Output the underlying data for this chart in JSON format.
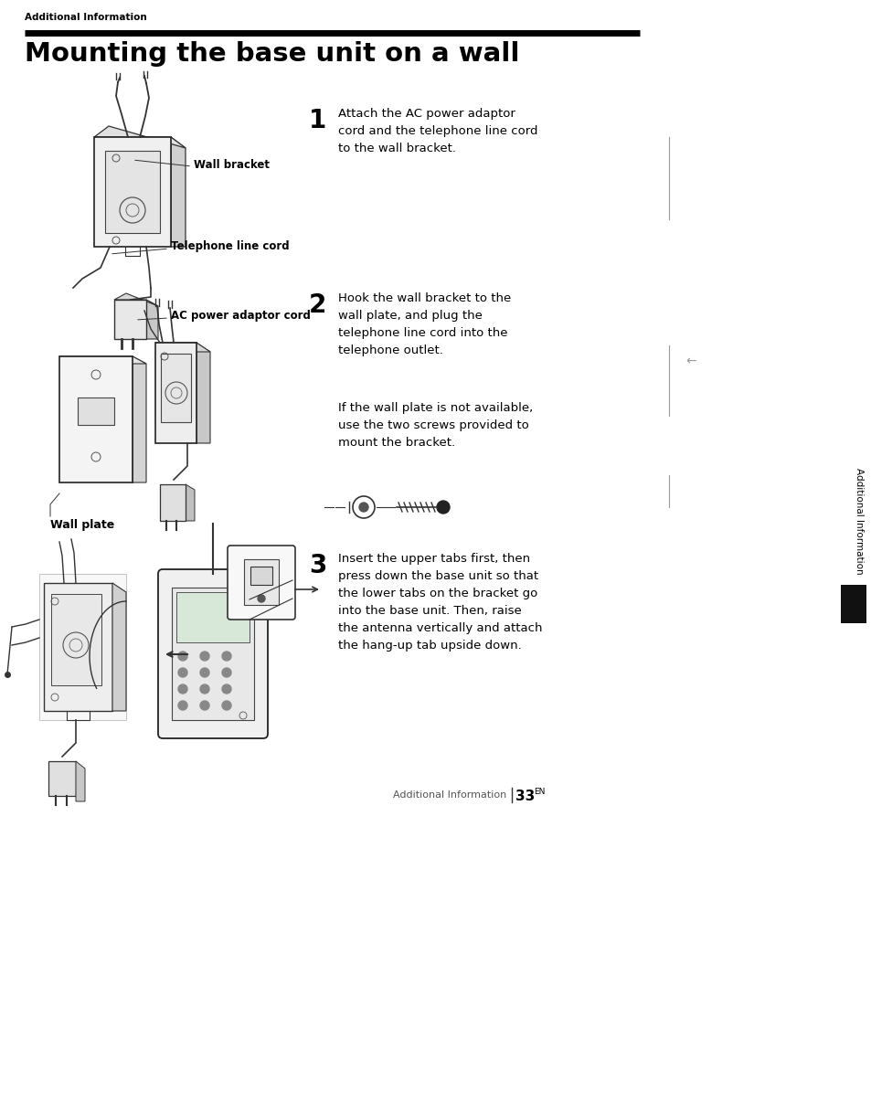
{
  "background_color": "#ffffff",
  "page_width": 9.54,
  "page_height": 12.18,
  "header_label": "Additional Information",
  "title": "Mounting the base unit on a wall",
  "step1_number": "1",
  "step1_text": "Attach the AC power adaptor\ncord and the telephone line cord\nto the wall bracket.",
  "step2_number": "2",
  "step2_text": "Hook the wall bracket to the\nwall plate, and plug the\ntelephone line cord into the\ntelephone outlet.",
  "step2_subtext": "If the wall plate is not available,\nuse the two screws provided to\nmount the bracket.",
  "step3_number": "3",
  "step3_text": "Insert the upper tabs first, then\npress down the base unit so that\nthe lower tabs on the bracket go\ninto the base unit. Then, raise\nthe antenna vertically and attach\nthe hang-up tab upside down.",
  "label1": "Wall bracket",
  "label2": "Telephone line cord",
  "label3": "AC power adaptor cord",
  "label4": "Wall plate",
  "sidebar_text": "Additional Information",
  "footer_text": "Additional Information",
  "footer_page": "33",
  "footer_superscript": "EN",
  "text_color": "#000000"
}
